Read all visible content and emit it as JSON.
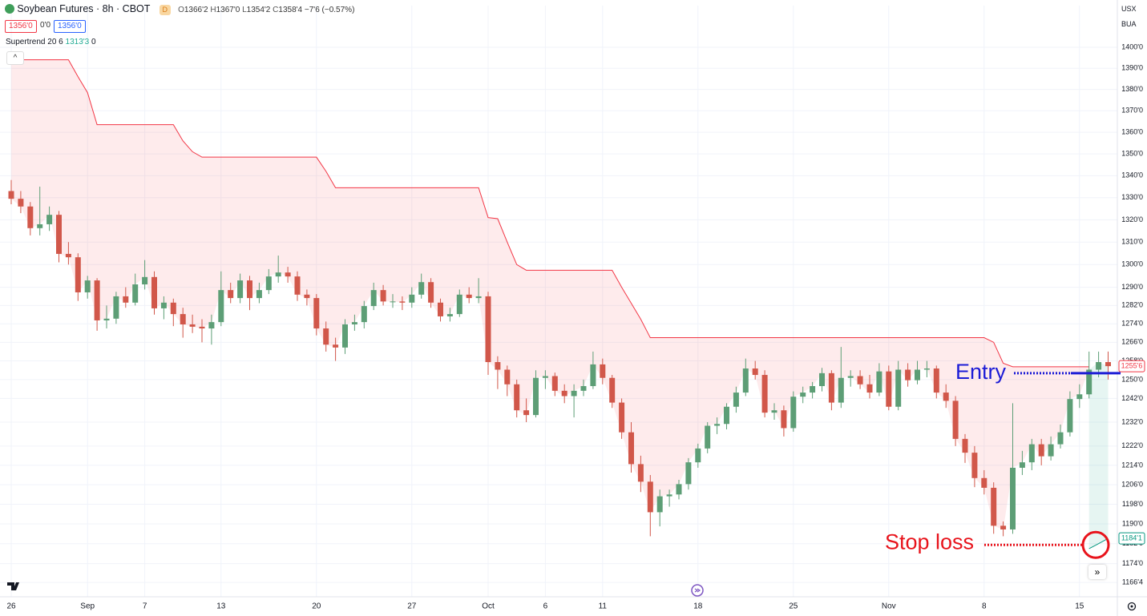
{
  "header": {
    "title": "Soybean Futures · 8h · CBOT",
    "badge": "D",
    "ohlc_legend": [
      {
        "label": "O",
        "value": "1366'2"
      },
      {
        "label": "H",
        "value": "1367'0"
      },
      {
        "label": "L",
        "value": "1354'2"
      },
      {
        "label": "C",
        "value": "1358'4"
      }
    ],
    "change": "−7'6 (−0.57%)",
    "sell": "1356'0",
    "spread": "0'0",
    "buy": "1356'0",
    "indicator": {
      "name": "Supertrend",
      "params": "20 6",
      "value": "1313'3",
      "extra": "0"
    }
  },
  "price_axis": {
    "currency": "USX",
    "unit": "BUA"
  },
  "chart_data": {
    "type": "candlestick",
    "log_scale": true,
    "grid": true,
    "up_color": "#5d9e76",
    "down_color": "#d1574a",
    "ylim": [
      1160.8,
      1420
    ],
    "yticks": [
      {
        "value": 1400,
        "label": "1400'0"
      },
      {
        "value": 1390,
        "label": "1390'0"
      },
      {
        "value": 1380,
        "label": "1380'0"
      },
      {
        "value": 1370,
        "label": "1370'0"
      },
      {
        "value": 1360,
        "label": "1360'0"
      },
      {
        "value": 1350,
        "label": "1350'0"
      },
      {
        "value": 1340,
        "label": "1340'0"
      },
      {
        "value": 1330,
        "label": "1330'0"
      },
      {
        "value": 1320,
        "label": "1320'0"
      },
      {
        "value": 1310,
        "label": "1310'0"
      },
      {
        "value": 1300,
        "label": "1300'0"
      },
      {
        "value": 1290,
        "label": "1290'0"
      },
      {
        "value": 1282,
        "label": "1282'0"
      },
      {
        "value": 1274,
        "label": "1274'0"
      },
      {
        "value": 1266,
        "label": "1266'0"
      },
      {
        "value": 1258,
        "label": "1258'0"
      },
      {
        "value": 1250,
        "label": "1250'0"
      },
      {
        "value": 1242,
        "label": "1242'0"
      },
      {
        "value": 1232,
        "label": "1232'0"
      },
      {
        "value": 1222,
        "label": "1222'0"
      },
      {
        "value": 1214,
        "label": "1214'0"
      },
      {
        "value": 1206,
        "label": "1206'0"
      },
      {
        "value": 1198,
        "label": "1198'0"
      },
      {
        "value": 1190,
        "label": "1190'0"
      },
      {
        "value": 1182,
        "label": "1182'0"
      },
      {
        "value": 1174,
        "label": "1174'0"
      },
      {
        "value": 1166.5,
        "label": "1166'4"
      }
    ],
    "categories": [
      "26",
      null,
      null,
      null,
      null,
      null,
      null,
      null,
      "Sep",
      null,
      null,
      null,
      null,
      null,
      "7",
      null,
      null,
      null,
      null,
      null,
      null,
      null,
      "13",
      null,
      null,
      null,
      null,
      null,
      null,
      null,
      null,
      null,
      "20",
      null,
      null,
      null,
      null,
      null,
      null,
      null,
      null,
      null,
      "27",
      null,
      null,
      null,
      null,
      null,
      null,
      null,
      "Oct",
      null,
      null,
      null,
      null,
      null,
      "6",
      null,
      null,
      null,
      null,
      null,
      "11",
      null,
      null,
      null,
      null,
      null,
      null,
      null,
      null,
      null,
      "18",
      null,
      null,
      null,
      null,
      null,
      null,
      null,
      null,
      null,
      "25",
      null,
      null,
      null,
      null,
      null,
      null,
      null,
      null,
      null,
      "Nov",
      null,
      null,
      null,
      null,
      null,
      null,
      null,
      null,
      null,
      "8",
      null,
      null,
      null,
      null,
      null,
      null,
      null,
      null,
      null,
      "15",
      null,
      null,
      null
    ],
    "ohlc": [
      [
        1333,
        1338,
        1327,
        1329.5
      ],
      [
        1329.5,
        1333,
        1323,
        1326
      ],
      [
        1326,
        1328,
        1313,
        1316.25
      ],
      [
        1316.25,
        1335,
        1313,
        1318
      ],
      [
        1318,
        1326,
        1315,
        1322.25
      ],
      [
        1322.25,
        1324,
        1301,
        1304.75
      ],
      [
        1304.75,
        1310,
        1300,
        1303.25
      ],
      [
        1303.25,
        1305,
        1284,
        1287.75
      ],
      [
        1287.75,
        1295,
        1285,
        1293
      ],
      [
        1293,
        1294,
        1271,
        1275.5
      ],
      [
        1275.5,
        1282,
        1272,
        1276.25
      ],
      [
        1276.25,
        1288,
        1274,
        1286
      ],
      [
        1286,
        1290,
        1281,
        1283.25
      ],
      [
        1283.25,
        1296,
        1282,
        1291.25
      ],
      [
        1291.25,
        1302,
        1289,
        1294.5
      ],
      [
        1294.5,
        1297,
        1278,
        1280.75
      ],
      [
        1280.75,
        1286,
        1276,
        1283.25
      ],
      [
        1283.25,
        1285,
        1273,
        1278.25
      ],
      [
        1278.25,
        1281,
        1268,
        1273.75
      ],
      [
        1273.75,
        1278,
        1270,
        1272.75
      ],
      [
        1272.75,
        1276,
        1266,
        1272
      ],
      [
        1272,
        1278,
        1265,
        1274.75
      ],
      [
        1274.75,
        1297,
        1273,
        1288.75
      ],
      [
        1288.75,
        1292,
        1283,
        1285.25
      ],
      [
        1285.25,
        1296,
        1283,
        1293
      ],
      [
        1293,
        1295,
        1280,
        1285.25
      ],
      [
        1285.25,
        1292,
        1283,
        1288.75
      ],
      [
        1288.75,
        1298,
        1287,
        1294.75
      ],
      [
        1294.75,
        1304,
        1292,
        1296.5
      ],
      [
        1296.5,
        1299,
        1292,
        1294.75
      ],
      [
        1294.75,
        1297,
        1284,
        1286.75
      ],
      [
        1286.75,
        1289,
        1282,
        1285.25
      ],
      [
        1285.25,
        1287,
        1269,
        1272
      ],
      [
        1272,
        1275,
        1262,
        1265
      ],
      [
        1265,
        1268,
        1258,
        1263.75
      ],
      [
        1263.75,
        1276,
        1261,
        1273.75
      ],
      [
        1273.75,
        1278,
        1271,
        1274.75
      ],
      [
        1274.75,
        1284,
        1272,
        1281.75
      ],
      [
        1281.75,
        1292,
        1280,
        1288.75
      ],
      [
        1288.75,
        1291,
        1282,
        1283.75
      ],
      [
        1283.5,
        1287,
        1281,
        1283.75
      ],
      [
        1283.75,
        1286,
        1280,
        1283.25
      ],
      [
        1283.25,
        1290,
        1281,
        1286.75
      ],
      [
        1286.75,
        1296,
        1285,
        1292.25
      ],
      [
        1292.25,
        1294,
        1281,
        1283.25
      ],
      [
        1283.25,
        1285,
        1275,
        1277.25
      ],
      [
        1277.25,
        1281,
        1275,
        1278.25
      ],
      [
        1278.25,
        1289,
        1277,
        1286.75
      ],
      [
        1286.75,
        1290,
        1283,
        1285.25
      ],
      [
        1285.25,
        1294,
        1283,
        1286
      ],
      [
        1286,
        1288,
        1252,
        1257.5
      ],
      [
        1257.5,
        1260,
        1246,
        1254.25
      ],
      [
        1254.25,
        1256,
        1243,
        1248
      ],
      [
        1248,
        1250,
        1234,
        1237
      ],
      [
        1237,
        1242,
        1232,
        1235
      ],
      [
        1235,
        1254,
        1234,
        1250.75
      ],
      [
        1250.75,
        1254,
        1246,
        1251.5
      ],
      [
        1251.5,
        1253,
        1243,
        1245.25
      ],
      [
        1245.25,
        1248,
        1240,
        1243
      ],
      [
        1243,
        1248,
        1234,
        1245.25
      ],
      [
        1245.25,
        1250,
        1243,
        1247.25
      ],
      [
        1247.25,
        1262,
        1246,
        1256.5
      ],
      [
        1256.5,
        1259,
        1248,
        1250.75
      ],
      [
        1250.75,
        1252,
        1238,
        1240.25
      ],
      [
        1240.25,
        1242,
        1225,
        1227.75
      ],
      [
        1227.75,
        1232,
        1211,
        1214.5
      ],
      [
        1214.5,
        1218,
        1203,
        1207.25
      ],
      [
        1207.25,
        1210,
        1185,
        1194.75
      ],
      [
        1194.75,
        1204,
        1189,
        1201.25
      ],
      [
        1201.25,
        1204,
        1197,
        1202
      ],
      [
        1202,
        1208,
        1200,
        1206.25
      ],
      [
        1206.25,
        1217,
        1204,
        1215.25
      ],
      [
        1215.25,
        1223,
        1213,
        1221
      ],
      [
        1221,
        1232,
        1219,
        1230.5
      ],
      [
        1230.5,
        1234,
        1227,
        1231.25
      ],
      [
        1231.25,
        1240,
        1229,
        1238.5
      ],
      [
        1238.5,
        1247,
        1236,
        1244.5
      ],
      [
        1244.5,
        1259,
        1243,
        1254.75
      ],
      [
        1254.75,
        1258,
        1250,
        1252
      ],
      [
        1252,
        1254,
        1234,
        1236
      ],
      [
        1236,
        1240,
        1233,
        1237
      ],
      [
        1237,
        1239,
        1226,
        1229.5
      ],
      [
        1229.5,
        1245,
        1228,
        1242.75
      ],
      [
        1242.75,
        1247,
        1240,
        1244.5
      ],
      [
        1244.5,
        1249,
        1242,
        1247.25
      ],
      [
        1247.25,
        1255,
        1245,
        1252.75
      ],
      [
        1252.75,
        1254,
        1237,
        1240.25
      ],
      [
        1240.25,
        1264,
        1238,
        1250.75
      ],
      [
        1250.75,
        1254,
        1247,
        1251.5
      ],
      [
        1251.5,
        1254,
        1246,
        1248
      ],
      [
        1248,
        1252,
        1242,
        1244.5
      ],
      [
        1244.5,
        1257,
        1243,
        1253.5
      ],
      [
        1253.5,
        1256,
        1237,
        1238.5
      ],
      [
        1238.5,
        1258,
        1237,
        1254.25
      ],
      [
        1254.25,
        1257,
        1247,
        1249.75
      ],
      [
        1249.75,
        1258,
        1248,
        1254.25
      ],
      [
        1254.25,
        1258,
        1251,
        1254.75
      ],
      [
        1254.75,
        1256,
        1242,
        1244.5
      ],
      [
        1244.5,
        1248,
        1238,
        1241
      ],
      [
        1241,
        1243,
        1222,
        1225
      ],
      [
        1225,
        1227,
        1215,
        1219.25
      ],
      [
        1219.25,
        1222,
        1205,
        1208.75
      ],
      [
        1208.75,
        1212,
        1202,
        1204.75
      ],
      [
        1204.75,
        1207,
        1186,
        1189.25
      ],
      [
        1189.25,
        1191,
        1185,
        1187.75
      ],
      [
        1187.75,
        1240,
        1186,
        1213
      ],
      [
        1213,
        1220,
        1210,
        1215.25
      ],
      [
        1215.25,
        1225,
        1212,
        1222.75
      ],
      [
        1222.75,
        1225,
        1214,
        1217.75
      ],
      [
        1217.75,
        1226,
        1216,
        1222.75
      ],
      [
        1222.75,
        1231,
        1221,
        1227.75
      ],
      [
        1227.75,
        1245,
        1226,
        1241.75
      ],
      [
        1241.75,
        1248,
        1238,
        1243.75
      ],
      [
        1243.75,
        1262,
        1242,
        1254.25
      ],
      [
        1254.25,
        1262,
        1251,
        1257.5
      ],
      [
        1257.5,
        1262,
        1250,
        1255.75
      ]
    ],
    "supertrend": [
      {
        "color": "#f23645",
        "fill": "rgba(242,54,69,0.1)",
        "values": [
          1394,
          1394,
          1394,
          1394,
          1394,
          1394,
          1394,
          1386,
          1378.5,
          1363.5,
          1363.5,
          1363.5,
          1363.5,
          1363.5,
          1363.5,
          1363.5,
          1363.5,
          1363.5,
          1356,
          1351,
          1348.5,
          1348.5,
          1348.5,
          1348.5,
          1348.5,
          1348.5,
          1348.5,
          1348.5,
          1348.5,
          1348.5,
          1348.5,
          1348.5,
          1348.5,
          1342,
          1334.5,
          1334.5,
          1334.5,
          1334.5,
          1334.5,
          1334.5,
          1334.5,
          1334.5,
          1334.5,
          1334.5,
          1334.5,
          1334.5,
          1334.5,
          1334.5,
          1334.5,
          1334.5,
          1321,
          1320.5,
          1310,
          1300,
          1297.5,
          1297.5,
          1297.5,
          1297.5,
          1297.5,
          1297.5,
          1297.5,
          1297.5,
          1297.5,
          1297.5,
          1290,
          1283,
          1276,
          1268,
          1268,
          1268,
          1268,
          1268,
          1268,
          1268,
          1268,
          1268,
          1268,
          1268,
          1268,
          1268,
          1268,
          1268,
          1268,
          1268,
          1268,
          1268,
          1268,
          1268,
          1268,
          1268,
          1268,
          1268,
          1268,
          1268,
          1268,
          1268,
          1268,
          1268,
          1268,
          1268,
          1268,
          1268,
          1268,
          1266,
          1257,
          1255.5,
          1255.5,
          1255.5,
          1255.5,
          1255.5,
          1255.5,
          1255.5,
          1255.5,
          1255.5,
          null,
          null
        ]
      },
      {
        "color": "#089981",
        "fill": "rgba(8,153,129,0.1)",
        "values": [
          null,
          null,
          null,
          null,
          null,
          null,
          null,
          null,
          null,
          null,
          null,
          null,
          null,
          null,
          null,
          null,
          null,
          null,
          null,
          null,
          null,
          null,
          null,
          null,
          null,
          null,
          null,
          null,
          null,
          null,
          null,
          null,
          null,
          null,
          null,
          null,
          null,
          null,
          null,
          null,
          null,
          null,
          null,
          null,
          null,
          null,
          null,
          null,
          null,
          null,
          null,
          null,
          null,
          null,
          null,
          null,
          null,
          null,
          null,
          null,
          null,
          null,
          null,
          null,
          null,
          null,
          null,
          null,
          null,
          null,
          null,
          null,
          null,
          null,
          null,
          null,
          null,
          null,
          null,
          null,
          null,
          null,
          null,
          null,
          null,
          null,
          null,
          null,
          null,
          null,
          null,
          null,
          null,
          null,
          null,
          null,
          null,
          null,
          null,
          null,
          null,
          null,
          null,
          null,
          null,
          null,
          null,
          null,
          null,
          null,
          null,
          null,
          null,
          1180,
          1182,
          1184.125
        ]
      }
    ],
    "price_labels": [
      {
        "value": 1255.75,
        "label": "1255'6",
        "color": "#f23645"
      },
      {
        "value": 1184.125,
        "label": "1184'1",
        "color": "#089981"
      }
    ],
    "annotations": [
      {
        "text": "Entry",
        "value": 1252.75,
        "color": "#1c1cd6"
      },
      {
        "text": "Stop loss",
        "value": 1181.5,
        "color": "#e8141c"
      }
    ]
  }
}
